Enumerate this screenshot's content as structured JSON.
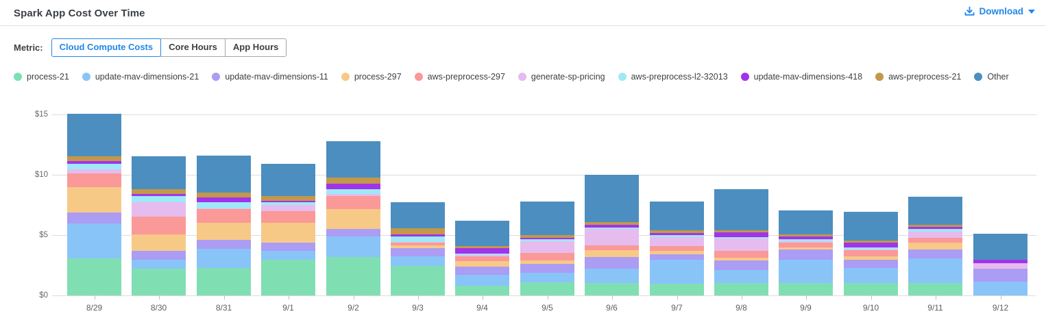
{
  "header": {
    "title": "Spark App Cost Over Time",
    "download_label": "Download"
  },
  "metric": {
    "label": "Metric:",
    "options": [
      {
        "label": "Cloud Compute Costs",
        "selected": true
      },
      {
        "label": "Core Hours",
        "selected": false
      },
      {
        "label": "App Hours",
        "selected": false
      }
    ]
  },
  "colors": {
    "accent_blue": "#2287ea",
    "gridline": "#dcdcdc"
  },
  "chart_data": {
    "type": "bar",
    "stacked": true,
    "grid": true,
    "legend_position": "top",
    "ylim": [
      0,
      15
    ],
    "y_ticks": [
      0,
      5,
      10,
      15
    ],
    "y_tick_labels": [
      "$0",
      "$5",
      "$10",
      "$15"
    ],
    "xlabel": "",
    "ylabel": "",
    "categories": [
      "8/29",
      "8/30",
      "8/31",
      "9/1",
      "9/2",
      "9/3",
      "9/4",
      "9/5",
      "9/6",
      "9/7",
      "9/8",
      "9/9",
      "9/10",
      "9/11",
      "9/12"
    ],
    "series": [
      {
        "name": "process-21",
        "color": "#80dfb2",
        "values": [
          3.05,
          2.2,
          2.25,
          2.95,
          3.2,
          2.45,
          0.8,
          1.1,
          1.05,
          0.95,
          1.0,
          1.0,
          1.05,
          1.0,
          0.0
        ]
      },
      {
        "name": "update-mav-dimensions-21",
        "color": "#89c4f8",
        "values": [
          2.9,
          0.75,
          1.6,
          0.75,
          1.7,
          0.8,
          0.9,
          0.75,
          1.15,
          2.0,
          1.1,
          1.95,
          1.2,
          2.05,
          1.15
        ]
      },
      {
        "name": "update-mav-dimensions-11",
        "color": "#ab9cf4",
        "values": [
          0.95,
          0.75,
          0.75,
          0.65,
          0.6,
          0.65,
          0.7,
          0.75,
          1.0,
          0.45,
          0.8,
          0.85,
          0.7,
          0.75,
          1.05
        ]
      },
      {
        "name": "process-297",
        "color": "#f7c987",
        "values": [
          2.1,
          1.35,
          1.4,
          1.65,
          1.65,
          0.25,
          0.45,
          0.3,
          0.55,
          0.3,
          0.25,
          0.2,
          0.3,
          0.55,
          0.0
        ]
      },
      {
        "name": "aws-preprocess-297",
        "color": "#fa9997",
        "values": [
          1.1,
          1.5,
          1.15,
          1.0,
          1.1,
          0.25,
          0.4,
          0.65,
          0.4,
          0.4,
          0.55,
          0.4,
          0.5,
          0.45,
          0.0
        ]
      },
      {
        "name": "generate-sp-pricing",
        "color": "#e6bbee",
        "values": [
          0.35,
          1.15,
          0.05,
          0.5,
          0.15,
          0.05,
          0.1,
          0.95,
          1.35,
          0.75,
          1.0,
          0.1,
          0.05,
          0.5,
          0.45
        ]
      },
      {
        "name": "aws-preprocess-l2-32013",
        "color": "#9fe8f8",
        "values": [
          0.45,
          0.55,
          0.5,
          0.25,
          0.4,
          0.45,
          0.1,
          0.15,
          0.1,
          0.15,
          0.15,
          0.15,
          0.15,
          0.2,
          0.0
        ]
      },
      {
        "name": "update-mav-dimensions-418",
        "color": "#a134ea",
        "values": [
          0.25,
          0.15,
          0.45,
          0.1,
          0.45,
          0.15,
          0.45,
          0.15,
          0.25,
          0.15,
          0.35,
          0.25,
          0.4,
          0.2,
          0.3
        ]
      },
      {
        "name": "aws-preprocess-21",
        "color": "#c3984b",
        "values": [
          0.4,
          0.4,
          0.4,
          0.4,
          0.55,
          0.5,
          0.2,
          0.2,
          0.25,
          0.25,
          0.2,
          0.15,
          0.2,
          0.15,
          0.0
        ]
      },
      {
        "name": "Other",
        "color": "#4c8ebf",
        "values": [
          3.5,
          2.75,
          3.05,
          2.65,
          3.0,
          2.15,
          2.1,
          2.8,
          3.9,
          2.4,
          3.4,
          2.0,
          2.4,
          2.35,
          2.15
        ]
      }
    ]
  }
}
